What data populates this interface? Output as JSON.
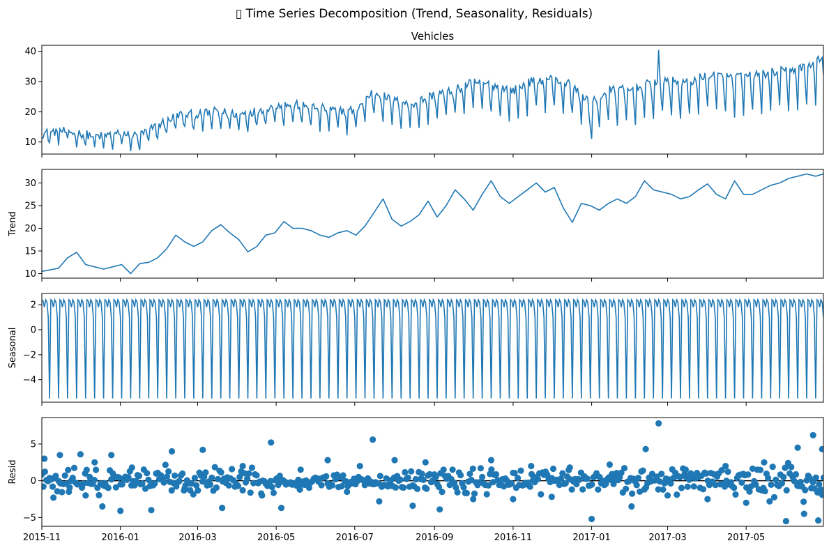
{
  "figure": {
    "suptitle": "▯ Time Series Decomposition (Trend, Seasonality, Residuals)"
  },
  "chart_data": [
    {
      "type": "line",
      "title": "Vehicles",
      "ylabel": "",
      "x_range": [
        "2015-11-01",
        "2017-06-30"
      ],
      "ylim": [
        6,
        42
      ],
      "yticks": [
        10,
        20,
        30,
        40
      ],
      "color": "#1f77b4",
      "x_dates": [
        "2015-11-01",
        "2015-11-15",
        "2015-12-01",
        "2015-12-15",
        "2016-01-01",
        "2016-01-15",
        "2016-02-01",
        "2016-02-15",
        "2016-03-01",
        "2016-03-15",
        "2016-04-01",
        "2016-04-15",
        "2016-05-01",
        "2016-05-15",
        "2016-06-01",
        "2016-06-15",
        "2016-07-01",
        "2016-07-15",
        "2016-08-01",
        "2016-08-15",
        "2016-09-01",
        "2016-09-15",
        "2016-10-01",
        "2016-10-15",
        "2016-11-01",
        "2016-11-15",
        "2016-12-01",
        "2016-12-15",
        "2017-01-01",
        "2017-01-15",
        "2017-02-01",
        "2017-02-15",
        "2017-03-01",
        "2017-03-15",
        "2017-04-01",
        "2017-04-15",
        "2017-05-01",
        "2017-05-15",
        "2017-06-01",
        "2017-06-15",
        "2017-06-30"
      ],
      "values": [
        12,
        13,
        12,
        11,
        12,
        11,
        15,
        18,
        18,
        19,
        18,
        19,
        21,
        21,
        20,
        19,
        19,
        25,
        22,
        21,
        24,
        25,
        28,
        27,
        25,
        28,
        29,
        27,
        21,
        25,
        25,
        27,
        28,
        27,
        30,
        29,
        29,
        30,
        31,
        32,
        35
      ]
    },
    {
      "type": "line",
      "title": "",
      "ylabel": "Trend",
      "x_range": [
        "2015-11-01",
        "2017-06-30"
      ],
      "ylim": [
        9,
        33
      ],
      "yticks": [
        10,
        15,
        20,
        25,
        30
      ],
      "color": "#1f77b4",
      "x_dates": [
        "2015-11-01",
        "2015-11-07",
        "2015-11-14",
        "2015-11-21",
        "2015-11-28",
        "2015-12-05",
        "2015-12-12",
        "2015-12-19",
        "2015-12-26",
        "2016-01-02",
        "2016-01-09",
        "2016-01-16",
        "2016-01-23",
        "2016-01-30",
        "2016-02-06",
        "2016-02-13",
        "2016-02-20",
        "2016-02-27",
        "2016-03-05",
        "2016-03-12",
        "2016-03-19",
        "2016-03-26",
        "2016-04-02",
        "2016-04-09",
        "2016-04-16",
        "2016-04-23",
        "2016-04-30",
        "2016-05-07",
        "2016-05-14",
        "2016-05-21",
        "2016-05-28",
        "2016-06-04",
        "2016-06-11",
        "2016-06-18",
        "2016-06-25",
        "2016-07-02",
        "2016-07-09",
        "2016-07-16",
        "2016-07-23",
        "2016-07-30",
        "2016-08-06",
        "2016-08-13",
        "2016-08-20",
        "2016-08-27",
        "2016-09-03",
        "2016-09-10",
        "2016-09-17",
        "2016-09-24",
        "2016-10-01",
        "2016-10-08",
        "2016-10-15",
        "2016-10-22",
        "2016-10-29",
        "2016-11-05",
        "2016-11-12",
        "2016-11-19",
        "2016-11-26",
        "2016-12-03",
        "2016-12-10",
        "2016-12-17",
        "2016-12-24",
        "2016-12-31",
        "2017-01-07",
        "2017-01-14",
        "2017-01-21",
        "2017-01-28",
        "2017-02-04",
        "2017-02-11",
        "2017-02-18",
        "2017-02-25",
        "2017-03-04",
        "2017-03-11",
        "2017-03-18",
        "2017-03-25",
        "2017-04-01",
        "2017-04-08",
        "2017-04-15",
        "2017-04-22",
        "2017-04-29",
        "2017-05-06",
        "2017-05-13",
        "2017-05-20",
        "2017-05-27",
        "2017-06-03",
        "2017-06-10",
        "2017-06-17",
        "2017-06-24",
        "2017-06-30"
      ],
      "values": [
        10.5,
        10.8,
        11.2,
        13.5,
        14.7,
        12.0,
        11.5,
        11.0,
        11.5,
        12.0,
        10.0,
        12.2,
        12.5,
        13.5,
        15.5,
        18.5,
        17.0,
        16.0,
        17.0,
        19.5,
        20.8,
        19.0,
        17.5,
        14.8,
        16.0,
        18.5,
        19.0,
        21.5,
        20.0,
        20.0,
        19.5,
        18.5,
        18.0,
        19.0,
        19.5,
        18.5,
        20.5,
        23.5,
        26.5,
        22.0,
        20.5,
        21.5,
        23.0,
        26.0,
        22.5,
        25.0,
        28.5,
        26.5,
        24.0,
        27.5,
        30.5,
        27.0,
        25.5,
        27.0,
        28.5,
        30.0,
        28.0,
        29.0,
        24.5,
        21.3,
        25.5,
        25.0,
        24.0,
        25.5,
        26.5,
        25.5,
        27.0,
        30.5,
        28.5,
        28.0,
        27.5,
        26.5,
        27.0,
        28.5,
        29.8,
        27.5,
        26.5,
        30.5,
        27.5,
        27.5,
        28.5,
        29.5,
        30.0,
        31.0,
        31.5,
        32.0,
        31.5,
        32.0
      ]
    },
    {
      "type": "line",
      "title": "",
      "ylabel": "Seasonal",
      "x_range": [
        "2015-11-01",
        "2017-06-30"
      ],
      "ylim": [
        -5.8,
        2.9
      ],
      "yticks": [
        -4,
        -2,
        0,
        2
      ],
      "color": "#1f77b4",
      "period_days": 7,
      "weekly_pattern": [
        2.4,
        2.3,
        1.8,
        2.4,
        2.2,
        1.0,
        -5.5
      ]
    },
    {
      "type": "scatter",
      "title": "",
      "ylabel": "Resid",
      "x_range": [
        "2015-11-01",
        "2017-06-30"
      ],
      "ylim": [
        -6.2,
        8.6
      ],
      "yticks": [
        -5,
        0,
        5
      ],
      "color": "#1f77b4",
      "zero_line": true,
      "points": [
        [
          "2015-11-03",
          3.0
        ],
        [
          "2015-11-10",
          -2.3
        ],
        [
          "2015-11-15",
          3.5
        ],
        [
          "2015-11-22",
          -1.5
        ],
        [
          "2015-12-01",
          3.6
        ],
        [
          "2015-12-05",
          -2.0
        ],
        [
          "2015-12-12",
          2.5
        ],
        [
          "2015-12-18",
          -3.5
        ],
        [
          "2015-12-25",
          3.5
        ],
        [
          "2016-01-01",
          -4.1
        ],
        [
          "2016-01-10",
          1.8
        ],
        [
          "2016-01-25",
          -4.0
        ],
        [
          "2016-02-10",
          4.0
        ],
        [
          "2016-02-20",
          -1.0
        ],
        [
          "2016-03-05",
          4.2
        ],
        [
          "2016-03-20",
          -3.7
        ],
        [
          "2016-04-05",
          2.0
        ],
        [
          "2016-04-20",
          -2.0
        ],
        [
          "2016-04-27",
          5.2
        ],
        [
          "2016-05-05",
          -3.7
        ],
        [
          "2016-05-20",
          1.5
        ],
        [
          "2016-06-10",
          2.8
        ],
        [
          "2016-06-25",
          -1.5
        ],
        [
          "2016-07-05",
          2.0
        ],
        [
          "2016-07-15",
          5.6
        ],
        [
          "2016-07-20",
          -2.8
        ],
        [
          "2016-08-01",
          2.8
        ],
        [
          "2016-08-15",
          -3.4
        ],
        [
          "2016-08-25",
          2.5
        ],
        [
          "2016-09-05",
          -3.9
        ],
        [
          "2016-09-15",
          1.5
        ],
        [
          "2016-10-01",
          -2.5
        ],
        [
          "2016-10-15",
          2.8
        ],
        [
          "2016-11-01",
          -2.5
        ],
        [
          "2016-11-15",
          2.0
        ],
        [
          "2016-12-01",
          -2.2
        ],
        [
          "2016-12-15",
          1.8
        ],
        [
          "2017-01-01",
          -5.2
        ],
        [
          "2017-01-15",
          2.2
        ],
        [
          "2017-02-01",
          -3.5
        ],
        [
          "2017-02-12",
          4.3
        ],
        [
          "2017-02-22",
          7.8
        ],
        [
          "2017-03-01",
          -2.0
        ],
        [
          "2017-03-15",
          1.5
        ],
        [
          "2017-04-01",
          -2.5
        ],
        [
          "2017-04-15",
          2.0
        ],
        [
          "2017-05-01",
          -3.0
        ],
        [
          "2017-05-15",
          2.5
        ],
        [
          "2017-06-01",
          -5.5
        ],
        [
          "2017-06-10",
          4.5
        ],
        [
          "2017-06-15",
          -4.5
        ],
        [
          "2017-06-22",
          6.2
        ],
        [
          "2017-06-26",
          -5.4
        ],
        [
          "2017-06-29",
          4.3
        ]
      ]
    }
  ],
  "x_axis": {
    "tick_labels": [
      "2015-11",
      "2016-01",
      "2016-03",
      "2016-05",
      "2016-07",
      "2016-09",
      "2016-11",
      "2017-01",
      "2017-03",
      "2017-05"
    ],
    "tick_dates": [
      "2015-11-01",
      "2016-01-01",
      "2016-03-01",
      "2016-05-01",
      "2016-07-01",
      "2016-09-01",
      "2016-11-01",
      "2017-01-01",
      "2017-03-01",
      "2017-05-01"
    ]
  }
}
